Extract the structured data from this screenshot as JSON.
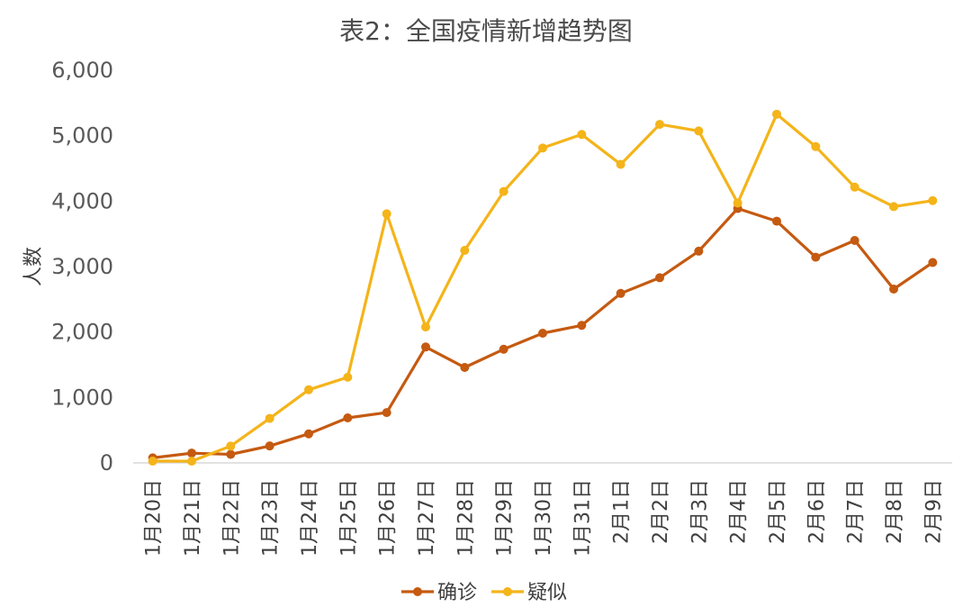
{
  "chart_data": {
    "type": "line",
    "title": "表2：全国疫情新增趋势图",
    "xlabel": "",
    "ylabel": "人数",
    "ylim": [
      0,
      6000
    ],
    "yticks": [
      "0",
      "1,000",
      "2,000",
      "3,000",
      "4,000",
      "5,000",
      "6,000"
    ],
    "categories": [
      "1月20日",
      "1月21日",
      "1月22日",
      "1月23日",
      "1月24日",
      "1月25日",
      "1月26日",
      "1月27日",
      "1月28日",
      "1月29日",
      "1月30日",
      "1月31日",
      "2月1日",
      "2月2日",
      "2月3日",
      "2月4日",
      "2月5日",
      "2月6日",
      "2月7日",
      "2月8日",
      "2月9日"
    ],
    "series": [
      {
        "name": "确诊",
        "color": "#C55A11",
        "values": [
          77,
          149,
          131,
          259,
          444,
          688,
          769,
          1771,
          1459,
          1737,
          1982,
          2102,
          2590,
          2829,
          3235,
          3887,
          3694,
          3143,
          3399,
          2656,
          3062
        ]
      },
      {
        "name": "疑似",
        "color": "#F4B41A",
        "values": [
          27,
          26,
          257,
          680,
          1118,
          1309,
          3806,
          2077,
          3248,
          4148,
          4812,
          5019,
          4562,
          5173,
          5072,
          3971,
          5328,
          4833,
          4214,
          3916,
          4008
        ]
      }
    ],
    "grid": false,
    "legend_position": "bottom"
  }
}
